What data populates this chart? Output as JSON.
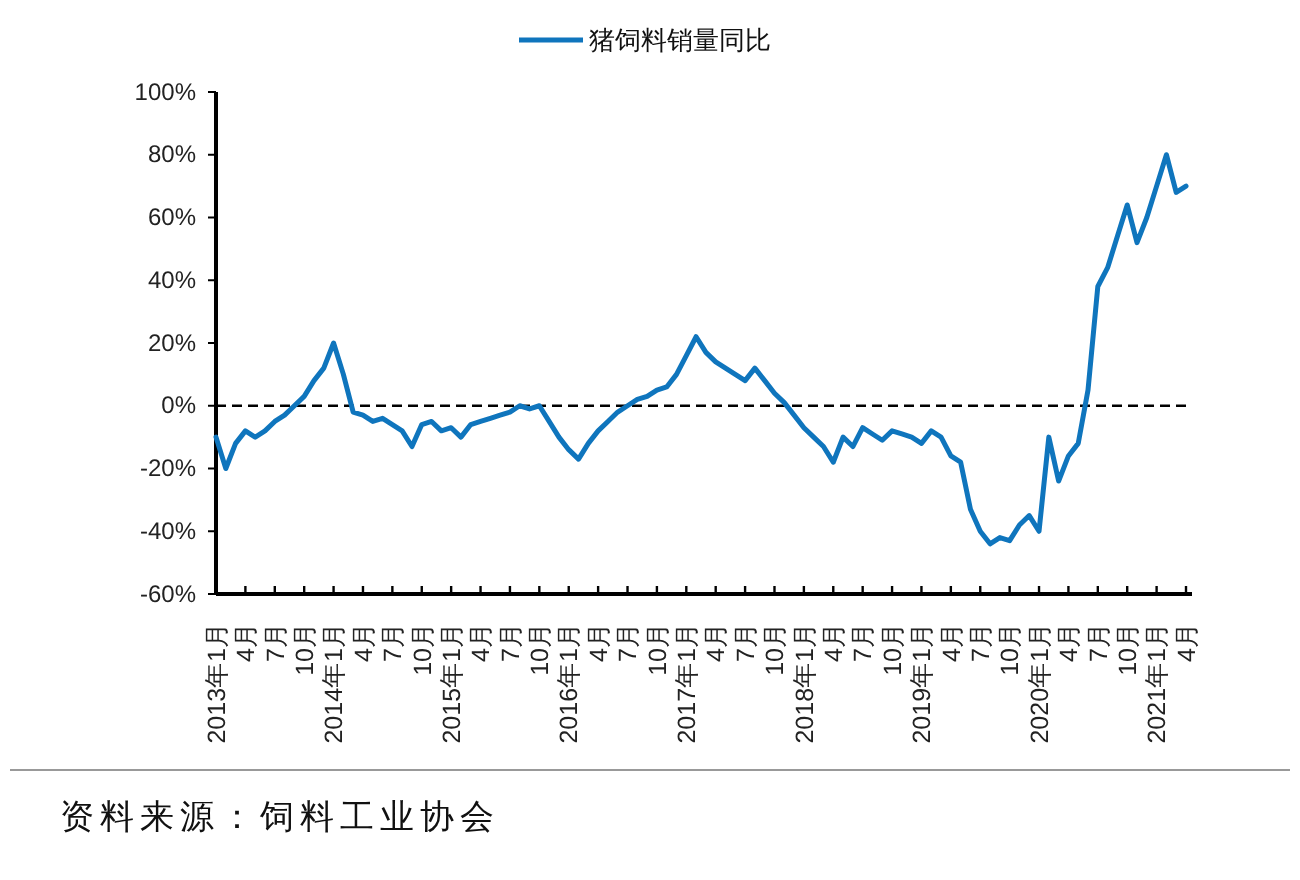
{
  "chart_data": {
    "type": "line",
    "categories": [
      "2013年1月",
      null,
      null,
      "4月",
      null,
      null,
      "7月",
      null,
      null,
      "10月",
      null,
      null,
      "2014年1月",
      null,
      null,
      "4月",
      null,
      null,
      "7月",
      null,
      null,
      "10月",
      null,
      null,
      "2015年1月",
      null,
      null,
      "4月",
      null,
      null,
      "7月",
      null,
      null,
      "10月",
      null,
      null,
      "2016年1月",
      null,
      null,
      "4月",
      null,
      null,
      "7月",
      null,
      null,
      "10月",
      null,
      null,
      "2017年1月",
      null,
      null,
      "4月",
      null,
      null,
      "7月",
      null,
      null,
      "10月",
      null,
      null,
      "2018年1月",
      null,
      null,
      "4月",
      null,
      null,
      "7月",
      null,
      null,
      "10月",
      null,
      null,
      "2019年1月",
      null,
      null,
      "4月",
      null,
      null,
      "7月",
      null,
      null,
      "10月",
      null,
      null,
      "2020年1月",
      null,
      null,
      "4月",
      null,
      null,
      "7月",
      null,
      null,
      "10月",
      null,
      null,
      "2021年1月",
      null,
      null,
      "4月"
    ],
    "series": [
      {
        "name": "猪饲料销量同比",
        "color": "#0f75bd",
        "values": [
          -10,
          -20,
          -12,
          -8,
          -10,
          -8,
          -5,
          -3,
          0,
          3,
          8,
          12,
          20,
          10,
          -2,
          -3,
          -5,
          -4,
          -6,
          -8,
          -13,
          -6,
          -5,
          -8,
          -7,
          -10,
          -6,
          -5,
          -4,
          -3,
          -2,
          0,
          -1,
          0,
          -5,
          -10,
          -14,
          -17,
          -12,
          -8,
          -5,
          -2,
          0,
          2,
          3,
          5,
          6,
          10,
          16,
          22,
          17,
          14,
          12,
          10,
          8,
          12,
          8,
          4,
          1,
          -3,
          -7,
          -10,
          -13,
          -18,
          -10,
          -13,
          -7,
          -9,
          -11,
          -8,
          -9,
          -10,
          -12,
          -8,
          -10,
          -16,
          -18,
          -33,
          -40,
          -44,
          -42,
          -43,
          -38,
          -35,
          -40,
          -10,
          -24,
          -16,
          -12,
          5,
          38,
          44,
          54,
          64,
          52,
          60,
          70,
          80,
          68,
          70
        ]
      }
    ],
    "ylim": [
      -60,
      100
    ],
    "yticks": [
      {
        "value": -60,
        "label": "-60%"
      },
      {
        "value": -40,
        "label": "-40%"
      },
      {
        "value": -20,
        "label": "-20%"
      },
      {
        "value": 0,
        "label": "0%"
      },
      {
        "value": 20,
        "label": "20%"
      },
      {
        "value": 40,
        "label": "40%"
      },
      {
        "value": 60,
        "label": "60%"
      },
      {
        "value": 80,
        "label": "80%"
      },
      {
        "value": 100,
        "label": "100%"
      }
    ],
    "ref_lines": [
      {
        "axis": "y",
        "value": 0,
        "color": "#000000",
        "line_style": "dashed"
      }
    ],
    "legend": "top",
    "grid": false,
    "marker": "none",
    "line_style": "solid",
    "annotations": [
      "资料来源：饲料工业协会"
    ]
  }
}
